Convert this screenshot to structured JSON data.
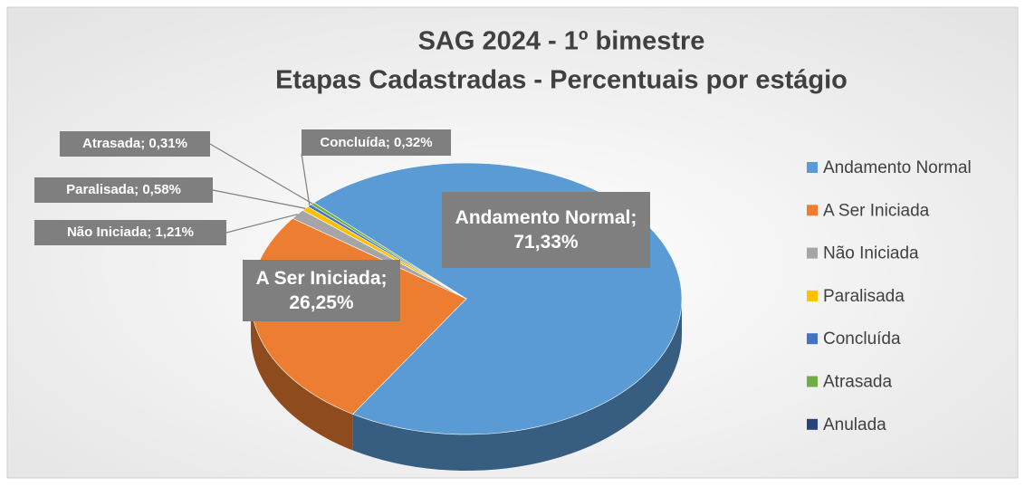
{
  "chart_data": {
    "type": "pie",
    "title": "SAG 2024 - 1º bimestre",
    "subtitle": "Etapas Cadastradas - Percentuais por estágio",
    "categories": [
      "Andamento Normal",
      "A Ser Iniciada",
      "Não Iniciada",
      "Paralisada",
      "Concluída",
      "Atrasada",
      "Anulada"
    ],
    "values": [
      71.33,
      26.25,
      1.21,
      0.58,
      0.32,
      0.31,
      0
    ],
    "value_labels": [
      "Andamento Normal; 71,33%",
      "A Ser Iniciada; 26,25%",
      "Não Iniciada; 1,21%",
      "Paralisada; 0,58%",
      "Concluída; 0,32%",
      "Atrasada; 0,31%",
      null
    ],
    "colors": [
      "#5b9bd5",
      "#ed7d31",
      "#a5a5a5",
      "#ffc000",
      "#4472c4",
      "#70ad47",
      "#264478"
    ],
    "legend": "right"
  }
}
